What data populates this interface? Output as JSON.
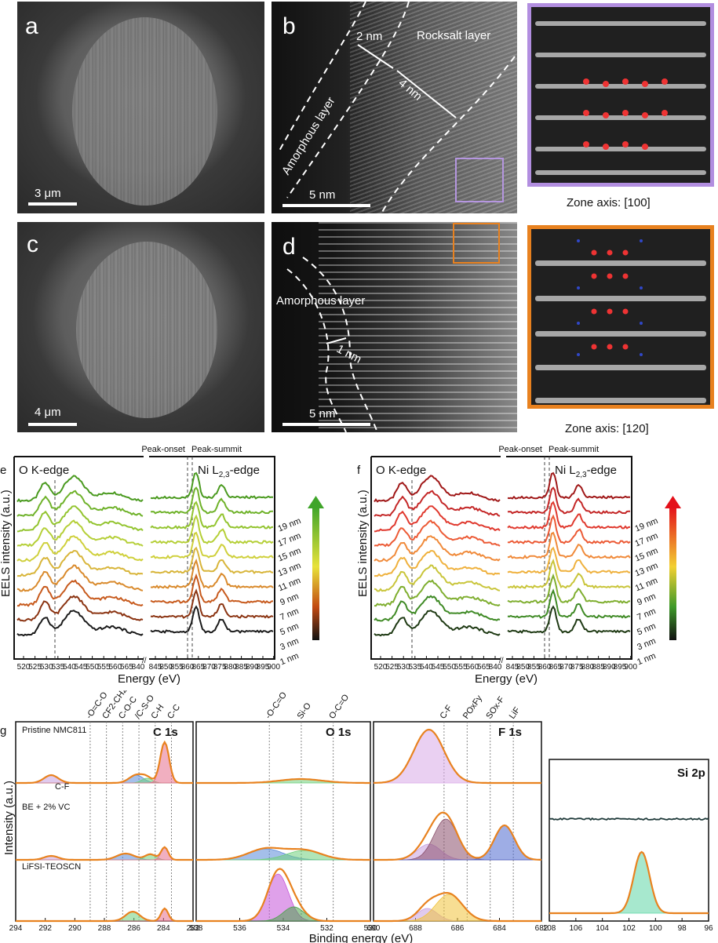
{
  "top": {
    "a": {
      "letter": "a",
      "scale": "3 μm"
    },
    "b": {
      "letter": "b",
      "scale": "5 nm",
      "rocksalt": "Rocksalt layer",
      "amorphous": "Amorphous layer",
      "d1": "2 nm",
      "d2": "4 nm"
    },
    "zone1": "Zone axis: [100]",
    "c": {
      "letter": "c",
      "scale": "4 μm"
    },
    "d": {
      "letter": "d",
      "scale": "5 nm",
      "amorphous": "Amorphous layer",
      "d1": "1 nm"
    },
    "zone2": "Zone axis: [120]"
  },
  "eels": [
    {
      "letter": "e",
      "ylabel": "EELS intensity (a.u.)",
      "xlabel": "Energy (eV)",
      "o_edge": "O K-edge",
      "ni_edge": "Ni L",
      "ni_sub": "2,3",
      "ni_suffix": "-edge",
      "onset": "Peak-onset",
      "summit": "Peak-summit",
      "left_ticks": [
        "520",
        "525",
        "530",
        "535",
        "540",
        "545",
        "550",
        "555",
        "560",
        "565",
        "840"
      ],
      "right_ticks": [
        "845",
        "850",
        "855",
        "860",
        "865",
        "870",
        "875",
        "880",
        "885",
        "890",
        "895",
        "900"
      ],
      "legend": [
        "19 nm",
        "17 nm",
        "15 nm",
        "13 nm",
        "11 nm",
        "9 nm",
        "7 nm",
        "5 nm",
        "3 nm",
        "1 nm"
      ],
      "colors": [
        "#4a9a1f",
        "#6fb22a",
        "#93c42f",
        "#b5cf37",
        "#cfd03c",
        "#d8b53a",
        "#d98a2c",
        "#c75a1d",
        "#8b3412",
        "#1b1b1b"
      ],
      "bar_top": "#3fa52a",
      "bar_mid": "#e8e23a",
      "bar_low": "#c24a12",
      "bar_bot": "#111111"
    },
    {
      "letter": "f",
      "ylabel": "EELS intensity (a.u.)",
      "xlabel": "Energy (eV)",
      "o_edge": "O K-edge",
      "ni_edge": "Ni L",
      "ni_sub": "2,3",
      "ni_suffix": "-edge",
      "onset": "Peak-onset",
      "summit": "Peak-summit",
      "left_ticks": [
        "520",
        "525",
        "530",
        "535",
        "540",
        "545",
        "550",
        "555",
        "560",
        "565",
        "840"
      ],
      "right_ticks": [
        "845",
        "850",
        "855",
        "860",
        "865",
        "870",
        "875",
        "880",
        "885",
        "890",
        "895",
        "900"
      ],
      "legend": [
        "19 nm",
        "17 nm",
        "15 nm",
        "13 nm",
        "11 nm",
        "9 nm",
        "7 nm",
        "5 nm",
        "3 nm",
        "1 nm"
      ],
      "colors": [
        "#a01818",
        "#c42727",
        "#e0392e",
        "#ec5a35",
        "#f08a3a",
        "#efb13d",
        "#c9c53a",
        "#7fae2f",
        "#3f8a25",
        "#1f3a14"
      ],
      "bar_top": "#e4101a",
      "bar_mid": "#f2d032",
      "bar_low": "#3f9a2a",
      "bar_bot": "#111111"
    }
  ],
  "xps": {
    "letter": "g",
    "ylabel": "Intensity (a.u.)",
    "xlabel": "Binding energy (eV)",
    "samples": [
      "Pristine NMC811",
      "BE + 2% VC",
      "LiFSI-TEOSCN"
    ],
    "c1s": {
      "title": "C 1s",
      "ticks": [
        "294",
        "292",
        "290",
        "288",
        "286",
        "284",
        "282"
      ],
      "peaks": [
        "-O=C-O",
        "CF2-CH2",
        "C-O-C",
        "/C-S-O",
        "C-H",
        "C-C"
      ],
      "cf_label": "C-F"
    },
    "o1s": {
      "title": "O 1s",
      "ticks": [
        "538",
        "536",
        "534",
        "532",
        "530"
      ],
      "peaks": [
        "-O-C=O",
        "Si-O",
        "O-C=O"
      ]
    },
    "f1s": {
      "title": "F 1s",
      "ticks": [
        "690",
        "688",
        "686",
        "684",
        "682"
      ],
      "peaks": [
        "C-F",
        "POxFy",
        "SOx-F",
        "LiF"
      ]
    },
    "si2p": {
      "title": "Si 2p",
      "ticks": [
        "108",
        "106",
        "104",
        "102",
        "100",
        "98",
        "96"
      ]
    }
  }
}
